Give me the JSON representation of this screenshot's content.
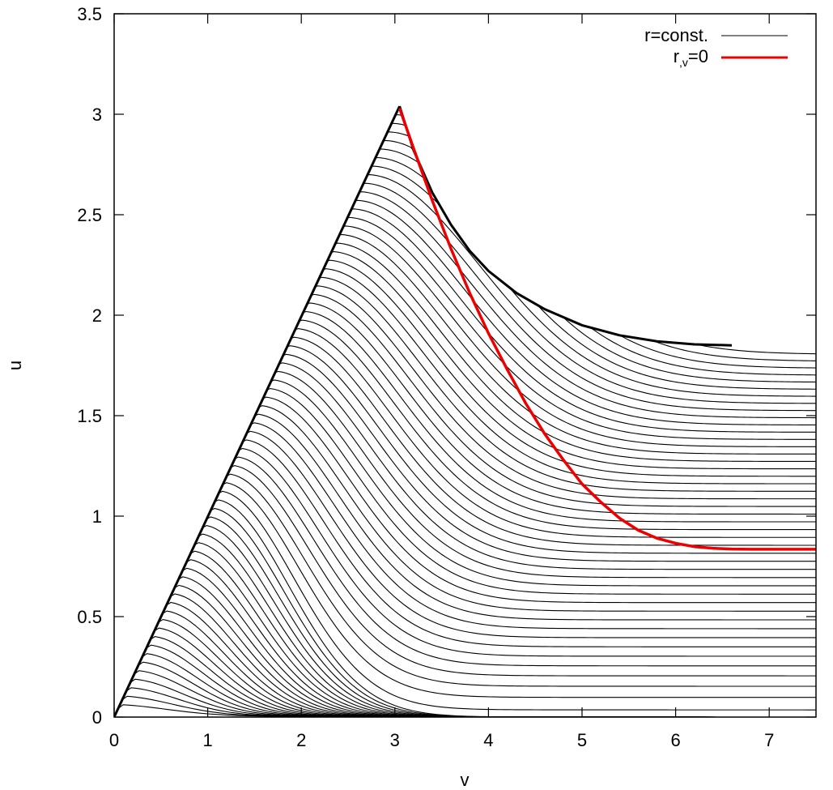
{
  "chart_data": {
    "type": "line",
    "title": "",
    "xlabel": "v",
    "ylabel": "u",
    "xlim": [
      0,
      7.5
    ],
    "ylim": [
      0,
      3.5
    ],
    "xticks": [
      "0",
      "1",
      "2",
      "3",
      "4",
      "5",
      "6",
      "7"
    ],
    "yticks": [
      "0",
      "0.5",
      "1",
      "1.5",
      "2",
      "2.5",
      "3",
      "3.5"
    ],
    "grid": false,
    "legend_position": "top-right",
    "colors": {
      "r_const": "#000000",
      "r_v_zero": "#ee0000",
      "frame": "#000000"
    },
    "series": [
      {
        "name": "r=const.",
        "legend_label": "r=const.",
        "description": "family of contour curves",
        "count": 70
      },
      {
        "name": "r,v=0",
        "legend_label_main": "r",
        "legend_label_sub": ",v",
        "legend_label_tail": "=0",
        "points": [
          [
            3.05,
            3.03
          ],
          [
            3.2,
            2.83
          ],
          [
            3.4,
            2.57
          ],
          [
            3.6,
            2.33
          ],
          [
            3.8,
            2.11
          ],
          [
            4.0,
            1.91
          ],
          [
            4.2,
            1.73
          ],
          [
            4.4,
            1.56
          ],
          [
            4.6,
            1.41
          ],
          [
            4.8,
            1.28
          ],
          [
            5.0,
            1.16
          ],
          [
            5.2,
            1.07
          ],
          [
            5.4,
            0.99
          ],
          [
            5.6,
            0.93
          ],
          [
            5.8,
            0.89
          ],
          [
            6.0,
            0.865
          ],
          [
            6.2,
            0.848
          ],
          [
            6.4,
            0.84
          ],
          [
            6.6,
            0.836
          ],
          [
            6.8,
            0.835
          ],
          [
            7.0,
            0.835
          ],
          [
            7.5,
            0.835
          ]
        ]
      }
    ],
    "boundaries": {
      "left_edge": [
        [
          0,
          0
        ],
        [
          3.05,
          3.04
        ]
      ],
      "apparent_horizon": [
        [
          3.05,
          3.04
        ],
        [
          3.2,
          2.82
        ],
        [
          3.4,
          2.61
        ],
        [
          3.6,
          2.45
        ],
        [
          3.8,
          2.32
        ],
        [
          4.0,
          2.22
        ],
        [
          4.3,
          2.11
        ],
        [
          4.6,
          2.03
        ],
        [
          5.0,
          1.95
        ],
        [
          5.4,
          1.9
        ],
        [
          5.8,
          1.87
        ],
        [
          6.2,
          1.855
        ],
        [
          6.6,
          1.85
        ]
      ]
    }
  }
}
